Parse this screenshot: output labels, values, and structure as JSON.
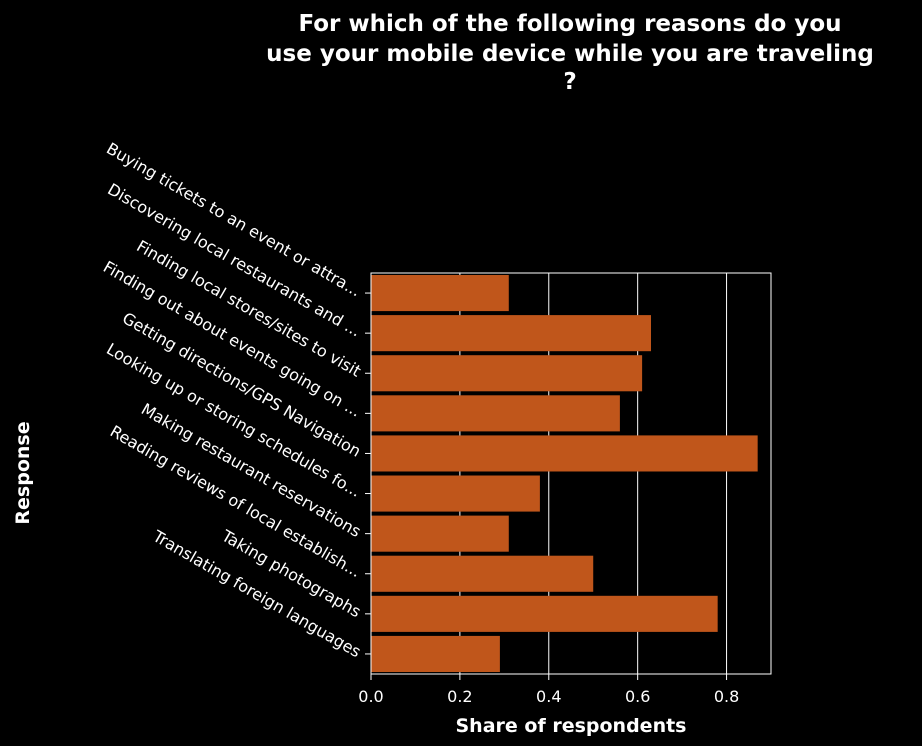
{
  "chart_data": {
    "type": "bar",
    "orientation": "horizontal",
    "title_lines": [
      "For which of the following reasons do you",
      "use your mobile device while you are traveling",
      "?"
    ],
    "xlabel": "Share of respondents",
    "ylabel": "Response",
    "categories": [
      "Buying tickets to an event or attra...",
      "Discovering local restaurants and ...",
      "Finding local stores/sites to visit",
      "Finding out about events going on ...",
      "Getting directions/GPS Navigation",
      "Looking up or storing schedules fo...",
      "Making restaurant reservations",
      "Reading reviews of local establish...",
      "Taking photographs",
      "Translating foreign languages"
    ],
    "values": [
      0.31,
      0.63,
      0.61,
      0.56,
      0.87,
      0.38,
      0.31,
      0.5,
      0.78,
      0.29
    ],
    "xlim": [
      0,
      0.9
    ],
    "xticks": [
      "0.0",
      "0.2",
      "0.4",
      "0.6",
      "0.8"
    ],
    "grid": "vertical",
    "bar_color": "#c0561b",
    "background_color": "#000000",
    "text_color": "#ffffff"
  }
}
